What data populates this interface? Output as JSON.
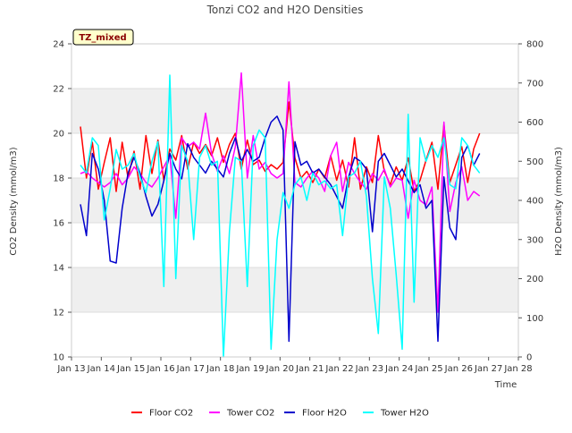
{
  "chart_data": {
    "type": "line",
    "title": "Tonzi CO2 and H2O Densities",
    "site_label": "TZ_mixed",
    "xlabel": "Time",
    "ylabel_left": "CO2 Density (mmol/m3)",
    "ylabel_right": "H2O Density (mmol/m3)",
    "ylim_left": [
      10,
      24
    ],
    "ylim_right": [
      0,
      800
    ],
    "xlim": [
      13,
      28
    ],
    "yticks_left": [
      10,
      12,
      14,
      16,
      18,
      20,
      22,
      24
    ],
    "yticks_right": [
      0,
      100,
      200,
      300,
      400,
      500,
      600,
      700,
      800
    ],
    "x_tick_labels": [
      "Jan 13",
      "Jan 14",
      "Jan 15",
      "Jan 16",
      "Jan 17",
      "Jan 18",
      "Jan 19",
      "Jan 20",
      "Jan 21",
      "Jan 22",
      "Jan 23",
      "Jan 24",
      "Jan 25",
      "Jan 26",
      "Jan 27",
      "Jan 28"
    ],
    "series": [
      {
        "name": "Floor CO2",
        "axis": "left",
        "color": "#ff0000",
        "x": [
          13.3,
          13.5,
          13.7,
          13.9,
          14.1,
          14.3,
          14.5,
          14.7,
          14.9,
          15.1,
          15.3,
          15.5,
          15.7,
          15.9,
          16.1,
          16.3,
          16.5,
          16.7,
          16.9,
          17.1,
          17.3,
          17.5,
          17.7,
          17.9,
          18.1,
          18.3,
          18.5,
          18.7,
          18.9,
          19.1,
          19.3,
          19.5,
          19.7,
          19.9,
          20.1,
          20.3,
          20.5,
          20.7,
          20.9,
          21.1,
          21.3,
          21.5,
          21.7,
          21.9,
          22.1,
          22.3,
          22.5,
          22.7,
          22.9,
          23.1,
          23.3,
          23.5,
          23.7,
          23.9,
          24.1,
          24.3,
          24.5,
          24.7,
          24.9,
          25.1,
          25.3,
          25.5,
          25.7,
          25.9,
          26.1,
          26.3,
          26.5,
          26.7
        ],
        "values": [
          20.3,
          18.0,
          19.6,
          17.5,
          18.7,
          19.8,
          17.4,
          19.6,
          18.0,
          19.2,
          17.5,
          19.9,
          18.2,
          19.7,
          17.9,
          19.3,
          18.8,
          19.9,
          18.4,
          19.6,
          19.1,
          19.5,
          19.0,
          19.8,
          18.7,
          19.5,
          20.0,
          18.4,
          19.7,
          18.6,
          18.8,
          18.3,
          18.6,
          18.4,
          18.7,
          21.4,
          18.9,
          18.0,
          18.3,
          17.8,
          18.4,
          18.0,
          19.0,
          17.9,
          18.8,
          17.6,
          19.8,
          17.5,
          18.5,
          17.8,
          19.9,
          18.3,
          17.7,
          18.5,
          17.9,
          18.9,
          17.4,
          17.9,
          18.8,
          19.6,
          17.5,
          20.4,
          17.8,
          18.6,
          19.4,
          17.8,
          19.3,
          20.0
        ]
      },
      {
        "name": "Tower CO2",
        "axis": "left",
        "color": "#ff00ff",
        "x": [
          13.3,
          13.5,
          13.7,
          13.9,
          14.1,
          14.3,
          14.5,
          14.7,
          14.9,
          15.1,
          15.3,
          15.5,
          15.7,
          15.9,
          16.1,
          16.3,
          16.5,
          16.7,
          16.9,
          17.1,
          17.3,
          17.5,
          17.7,
          17.9,
          18.1,
          18.3,
          18.5,
          18.7,
          18.9,
          19.1,
          19.3,
          19.5,
          19.7,
          19.9,
          20.1,
          20.3,
          20.5,
          20.7,
          20.9,
          21.1,
          21.3,
          21.5,
          21.7,
          21.9,
          22.1,
          22.3,
          22.5,
          22.7,
          22.9,
          23.1,
          23.3,
          23.5,
          23.7,
          23.9,
          24.1,
          24.3,
          24.5,
          24.7,
          24.9,
          25.1,
          25.3,
          25.5,
          25.7,
          25.9,
          26.1,
          26.3,
          26.5,
          26.7
        ],
        "values": [
          18.2,
          18.3,
          18.0,
          17.8,
          17.6,
          17.8,
          18.2,
          17.7,
          18.0,
          18.5,
          18.2,
          17.8,
          17.6,
          18.0,
          18.5,
          19.0,
          16.2,
          19.8,
          19.4,
          19.6,
          19.3,
          20.9,
          19.1,
          18.3,
          19.0,
          18.2,
          19.4,
          22.7,
          18.0,
          19.9,
          18.4,
          18.7,
          18.2,
          18.0,
          18.2,
          22.3,
          17.8,
          17.6,
          18.0,
          18.3,
          18.0,
          17.4,
          19.0,
          19.6,
          17.4,
          18.7,
          18.2,
          17.8,
          17.5,
          18.2,
          17.9,
          18.4,
          17.6,
          18.0,
          17.9,
          16.2,
          17.9,
          17.0,
          16.8,
          17.6,
          12.0,
          20.5,
          16.5,
          17.8,
          18.5,
          17.0,
          17.4,
          17.2
        ]
      },
      {
        "name": "Floor H2O",
        "axis": "right",
        "color": "#0000cc",
        "x": [
          13.3,
          13.5,
          13.7,
          13.9,
          14.1,
          14.3,
          14.5,
          14.7,
          14.9,
          15.1,
          15.3,
          15.5,
          15.7,
          15.9,
          16.1,
          16.3,
          16.5,
          16.7,
          16.9,
          17.1,
          17.3,
          17.5,
          17.7,
          17.9,
          18.1,
          18.3,
          18.5,
          18.7,
          18.9,
          19.1,
          19.3,
          19.5,
          19.7,
          19.9,
          20.1,
          20.3,
          20.5,
          20.7,
          20.9,
          21.1,
          21.3,
          21.5,
          21.7,
          21.9,
          22.1,
          22.3,
          22.5,
          22.7,
          22.9,
          23.1,
          23.3,
          23.5,
          23.7,
          23.9,
          24.1,
          24.3,
          24.5,
          24.7,
          24.9,
          25.1,
          25.3,
          25.5,
          25.7,
          25.9,
          26.1,
          26.3,
          26.5,
          26.7
        ],
        "values": [
          390,
          310,
          520,
          480,
          400,
          245,
          240,
          380,
          470,
          510,
          470,
          410,
          360,
          390,
          450,
          520,
          480,
          455,
          545,
          510,
          490,
          470,
          500,
          480,
          460,
          520,
          560,
          500,
          530,
          500,
          510,
          560,
          600,
          615,
          580,
          40,
          550,
          490,
          500,
          470,
          480,
          460,
          440,
          410,
          380,
          460,
          510,
          500,
          480,
          320,
          500,
          520,
          490,
          460,
          480,
          450,
          420,
          440,
          380,
          400,
          40,
          460,
          330,
          300,
          510,
          540,
          490,
          520
        ]
      },
      {
        "name": "Tower H2O",
        "axis": "right",
        "color": "#00ffff",
        "x": [
          13.3,
          13.5,
          13.7,
          13.9,
          14.1,
          14.3,
          14.5,
          14.7,
          14.9,
          15.1,
          15.3,
          15.5,
          15.7,
          15.9,
          16.1,
          16.3,
          16.5,
          16.7,
          16.9,
          17.1,
          17.3,
          17.5,
          17.7,
          17.9,
          18.1,
          18.3,
          18.5,
          18.7,
          18.9,
          19.1,
          19.3,
          19.5,
          19.7,
          19.9,
          20.1,
          20.3,
          20.5,
          20.7,
          20.9,
          21.1,
          21.3,
          21.5,
          21.7,
          21.9,
          22.1,
          22.3,
          22.5,
          22.7,
          22.9,
          23.1,
          23.3,
          23.5,
          23.7,
          23.9,
          24.1,
          24.3,
          24.5,
          24.7,
          24.9,
          25.1,
          25.3,
          25.5,
          25.7,
          25.9,
          26.1,
          26.3,
          26.5,
          26.7
        ],
        "values": [
          490,
          470,
          560,
          540,
          350,
          430,
          530,
          480,
          490,
          520,
          460,
          420,
          500,
          550,
          180,
          720,
          200,
          540,
          500,
          300,
          510,
          540,
          490,
          500,
          0,
          320,
          510,
          500,
          180,
          540,
          580,
          560,
          20,
          300,
          420,
          380,
          440,
          460,
          400,
          470,
          440,
          450,
          430,
          440,
          310,
          460,
          470,
          500,
          410,
          200,
          60,
          460,
          380,
          210,
          20,
          620,
          140,
          560,
          500,
          540,
          510,
          560,
          440,
          430,
          560,
          540,
          490,
          470
        ]
      }
    ],
    "legend": [
      {
        "label": "Floor CO2",
        "color": "#ff0000"
      },
      {
        "label": "Tower CO2",
        "color": "#ff00ff"
      },
      {
        "label": "Floor H2O",
        "color": "#0000cc"
      },
      {
        "label": "Tower H2O",
        "color": "#00ffff"
      }
    ],
    "legend_position": "bottom-center",
    "grid": true
  }
}
